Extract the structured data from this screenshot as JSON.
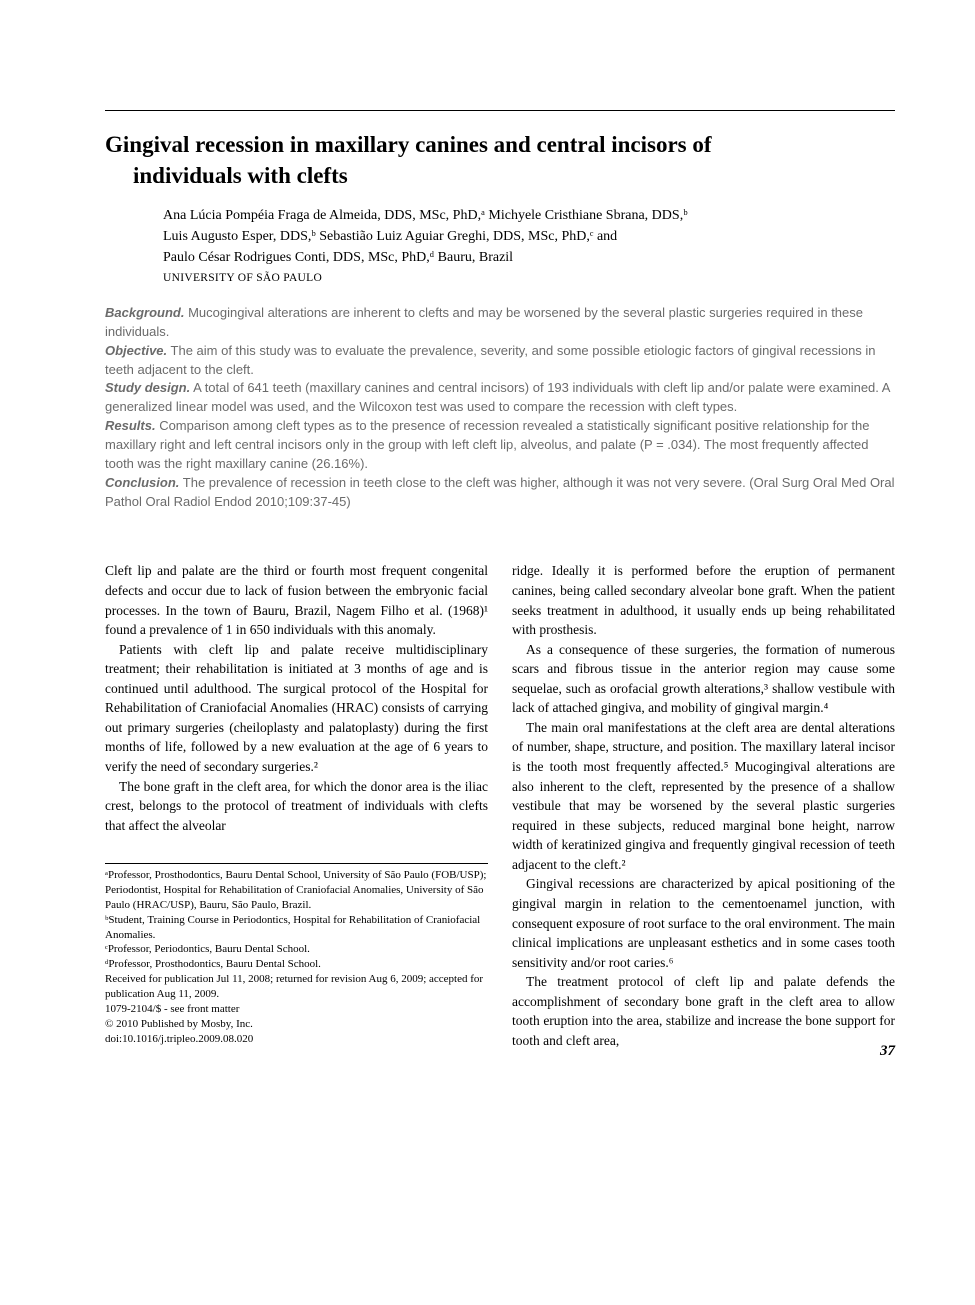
{
  "title_line1": "Gingival recession in maxillary canines and central incisors of",
  "title_line2": "individuals with clefts",
  "authors_line1": "Ana Lúcia Pompéia Fraga de Almeida, DDS, MSc, PhD,ᵃ Michyele Cristhiane Sbrana, DDS,ᵇ",
  "authors_line2": "Luis Augusto Esper, DDS,ᵇ Sebastião Luiz Aguiar Greghi, DDS, MSc, PhD,ᶜ and",
  "authors_line3": "Paulo César Rodrigues Conti, DDS, MSc, PhD,ᵈ Bauru, Brazil",
  "affiliation": "UNIVERSITY OF SÃO PAULO",
  "abstract": {
    "background_label": "Background.",
    "background_text": " Mucogingival alterations are inherent to clefts and may be worsened by the several plastic surgeries required in these individuals.",
    "objective_label": "Objective.",
    "objective_text": " The aim of this study was to evaluate the prevalence, severity, and some possible etiologic factors of gingival recessions in teeth adjacent to the cleft.",
    "study_label": "Study design.",
    "study_text": " A total of 641 teeth (maxillary canines and central incisors) of 193 individuals with cleft lip and/or palate were examined. A generalized linear model was used, and the Wilcoxon test was used to compare the recession with cleft types.",
    "results_label": "Results.",
    "results_text": " Comparison among cleft types as to the presence of recession revealed a statistically significant positive relationship for the maxillary right and left central incisors only in the group with left cleft lip, alveolus, and palate (P = .034). The most frequently affected tooth was the right maxillary canine (26.16%).",
    "conclusion_label": "Conclusion.",
    "conclusion_text": " The prevalence of recession in teeth close to the cleft was higher, although it was not very severe. (Oral Surg Oral Med Oral Pathol Oral Radiol Endod 2010;109:37-45)"
  },
  "body": {
    "left": {
      "p1": "Cleft lip and palate are the third or fourth most frequent congenital defects and occur due to lack of fusion between the embryonic facial processes. In the town of Bauru, Brazil, Nagem Filho et al. (1968)¹ found a prevalence of 1 in 650 individuals with this anomaly.",
      "p2": "Patients with cleft lip and palate receive multidisciplinary treatment; their rehabilitation is initiated at 3 months of age and is continued until adulthood. The surgical protocol of the Hospital for Rehabilitation of Craniofacial Anomalies (HRAC) consists of carrying out primary surgeries (cheiloplasty and palatoplasty) during the first months of life, followed by a new evaluation at the age of 6 years to verify the need of secondary surgeries.²",
      "p3": "The bone graft in the cleft area, for which the donor area is the iliac crest, belongs to the protocol of treatment of individuals with clefts that affect the alveolar"
    },
    "right": {
      "p1": "ridge. Ideally it is performed before the eruption of permanent canines, being called secondary alveolar bone graft. When the patient seeks treatment in adulthood, it usually ends up being rehabilitated with prosthesis.",
      "p2": "As a consequence of these surgeries, the formation of numerous scars and fibrous tissue in the anterior region may cause some sequelae, such as orofacial growth alterations,³ shallow vestibule with lack of attached gingiva, and mobility of gingival margin.⁴",
      "p3": "The main oral manifestations at the cleft area are dental alterations of number, shape, structure, and position. The maxillary lateral incisor is the tooth most frequently affected.⁵ Mucogingival alterations are also inherent to the cleft, represented by the presence of a shallow vestibule that may be worsened by the several plastic surgeries required in these subjects, reduced marginal bone height, narrow width of keratinized gingiva and frequently gingival recession of teeth adjacent to the cleft.²",
      "p4": "Gingival recessions are characterized by apical positioning of the gingival margin in relation to the cementoenamel junction, with consequent exposure of root surface to the oral environment. The main clinical implications are unpleasant esthetics and in some cases tooth sensitivity and/or root caries.⁶",
      "p5": "The treatment protocol of cleft lip and palate defends the accomplishment of secondary bone graft in the cleft area to allow tooth eruption into the area, stabilize and increase the bone support for tooth and cleft area,"
    }
  },
  "footnotes": {
    "a": "ᵃProfessor, Prosthodontics, Bauru Dental School, University of São Paulo (FOB/USP); Periodontist, Hospital for Rehabilitation of Craniofacial Anomalies, University of São Paulo (HRAC/USP), Bauru, São Paulo, Brazil.",
    "b": "ᵇStudent, Training Course in Periodontics, Hospital for Rehabilitation of Craniofacial Anomalies.",
    "c": "ᶜProfessor, Periodontics, Bauru Dental School.",
    "d": "ᵈProfessor, Prosthodontics, Bauru Dental School.",
    "received": "Received for publication Jul 11, 2008; returned for revision Aug 6, 2009; accepted for publication Aug 11, 2009.",
    "issn": "1079-2104/$ - see front matter",
    "copyright": "© 2010 Published by Mosby, Inc.",
    "doi": "doi:10.1016/j.tripleo.2009.08.020"
  },
  "page_number": "37",
  "colors": {
    "text": "#000000",
    "abstract_text": "#6b6b6b",
    "background": "#ffffff"
  }
}
